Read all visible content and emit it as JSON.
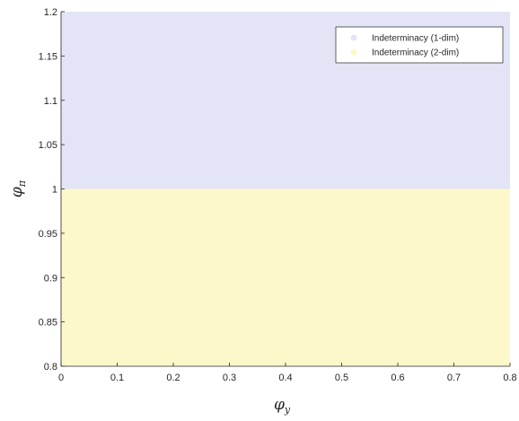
{
  "chart_data": {
    "type": "area",
    "xlabel": {
      "base": "φ",
      "sub": "y"
    },
    "ylabel": {
      "base": "φ",
      "sub": "π"
    },
    "xlim": [
      0,
      0.8
    ],
    "ylim": [
      0.8,
      1.2
    ],
    "x_ticks": [
      "0",
      "0.1",
      "0.2",
      "0.3",
      "0.4",
      "0.5",
      "0.6",
      "0.7",
      "0.8"
    ],
    "y_ticks": [
      "0.8",
      "0.85",
      "0.9",
      "0.95",
      "1",
      "1.05",
      "1.1",
      "1.15",
      "1.2"
    ],
    "grid": false,
    "legend_position": "top-right",
    "series": [
      {
        "name": "Indeterminacy (1-dim)",
        "color": "#e4e4f7",
        "y_from": 1.0,
        "y_to": 1.2,
        "x_from": 0,
        "x_to": 0.8
      },
      {
        "name": "Indeterminacy (2-dim)",
        "color": "#fdf8c9",
        "y_from": 0.8,
        "y_to": 1.0,
        "x_from": 0,
        "x_to": 0.8
      }
    ]
  }
}
